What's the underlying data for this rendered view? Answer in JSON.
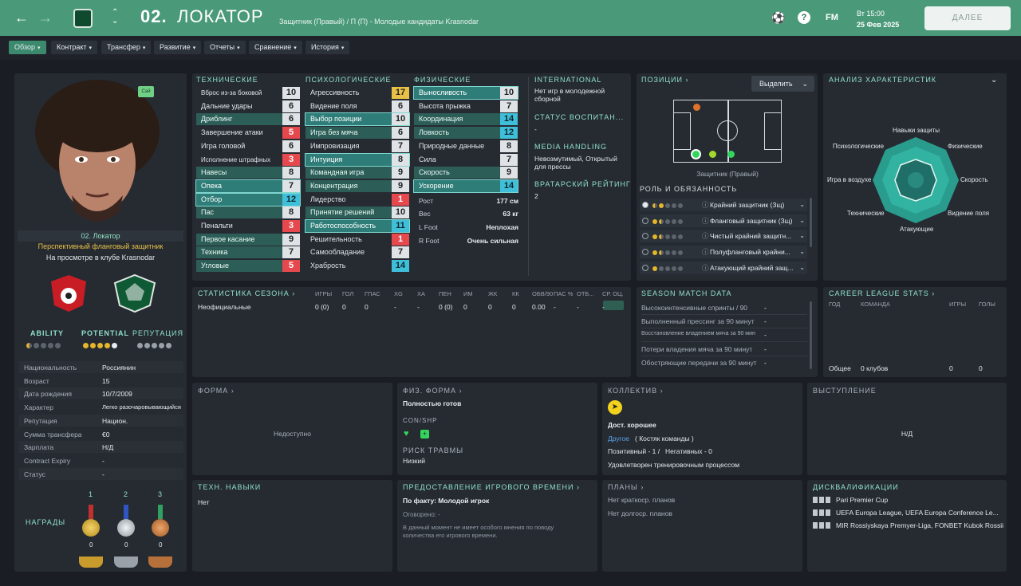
{
  "header": {
    "number": "02.",
    "name": "ЛОКАТОР",
    "subtitle": "Защитник (Правый) / П (П) - Молодые кандидаты Krasnodar",
    "time": "Вт 15:00",
    "date": "25 Фев 2025",
    "continue": "ДАЛЕЕ",
    "fm": "FM",
    "help": "?"
  },
  "tabs": [
    "Обзор",
    "Контракт",
    "Трансфер",
    "Развитие",
    "Отчеты",
    "Сравнение",
    "История"
  ],
  "profile": {
    "badge": "Сай",
    "name": "02. Локатор",
    "role": "Перспективный фланговый защитник",
    "status": "На просмотре в клубе Krasnodar",
    "ability": "ABILITY",
    "potential": "POTENTIAL",
    "reputation": "РЕПУТАЦИЯ"
  },
  "info": [
    [
      "Национальность",
      "Россиянин"
    ],
    [
      "Возраст",
      "15"
    ],
    [
      "Дата рождения",
      "10/7/2009"
    ],
    [
      "Характер",
      "Легко разочаровывающийся"
    ],
    [
      "Репутация",
      "Национ."
    ],
    [
      "Сумма трансфера",
      "€0"
    ],
    [
      "Зарплата",
      "Н/Д"
    ],
    [
      "Contract Expiry",
      "-"
    ],
    [
      "Статус",
      "-"
    ]
  ],
  "awards": {
    "title": "НАГРАДЫ",
    "places": [
      "1",
      "2",
      "3"
    ],
    "counts": [
      "0",
      "0",
      "0"
    ]
  },
  "attributes": {
    "tech_title": "ТЕХНИЧЕСКИЕ",
    "mental_title": "ПСИХОЛОГИЧЕСКИЕ",
    "phys_title": "ФИЗИЧЕСКИЕ",
    "technical": [
      [
        "Вброс из-за боковой",
        "10"
      ],
      [
        "Дальние удары",
        "6"
      ],
      [
        "Дриблинг",
        "6"
      ],
      [
        "Завершение атаки",
        "5"
      ],
      [
        "Игра головой",
        "6"
      ],
      [
        "Исполнение штрафных",
        "3"
      ],
      [
        "Навесы",
        "8"
      ],
      [
        "Опека",
        "7"
      ],
      [
        "Отбор",
        "12"
      ],
      [
        "Пас",
        "8"
      ],
      [
        "Пенальти",
        "3"
      ],
      [
        "Первое касание",
        "9"
      ],
      [
        "Техника",
        "7"
      ],
      [
        "Угловые",
        "5"
      ]
    ],
    "mental": [
      [
        "Агрессивность",
        "17"
      ],
      [
        "Видение поля",
        "6"
      ],
      [
        "Выбор позиции",
        "10"
      ],
      [
        "Игра без мяча",
        "6"
      ],
      [
        "Импровизация",
        "7"
      ],
      [
        "Интуиция",
        "8"
      ],
      [
        "Командная игра",
        "9"
      ],
      [
        "Концентрация",
        "9"
      ],
      [
        "Лидерство",
        "1"
      ],
      [
        "Принятие решений",
        "10"
      ],
      [
        "Работоспособность",
        "11"
      ],
      [
        "Решительность",
        "1"
      ],
      [
        "Самообладание",
        "7"
      ],
      [
        "Храбрость",
        "14"
      ]
    ],
    "physical": [
      [
        "Выносливость",
        "10"
      ],
      [
        "Высота прыжка",
        "7"
      ],
      [
        "Координация",
        "14"
      ],
      [
        "Ловкость",
        "12"
      ],
      [
        "Природные данные",
        "8"
      ],
      [
        "Сила",
        "7"
      ],
      [
        "Скорость",
        "9"
      ],
      [
        "Ускорение",
        "14"
      ]
    ],
    "extra": [
      [
        "Рост",
        "177 см"
      ],
      [
        "Вес",
        "63 кг"
      ],
      [
        "L Foot",
        "Неплохая"
      ],
      [
        "R Foot",
        "Очень сильная"
      ]
    ]
  },
  "side_info": {
    "international_title": "INTERNATIONAL",
    "international_text": "Нет игр в молодежной сборной",
    "homegrown_title": "СТАТУС ВОСПИТАН...",
    "homegrown_text": "-",
    "media_title": "MEDIA HANDLING",
    "media_text": "Невозмутимый, Открытый для прессы",
    "gk_title": "ВРАТАРСКИЙ РЕЙТИНГ",
    "gk_text": "2"
  },
  "positions": {
    "title": "ПОЗИЦИИ",
    "select": "Выделить",
    "caption": "Защитник (Правый)",
    "roles_title": "РОЛЬ И ОБЯЗАННОСТЬ",
    "roles": [
      "Крайний защитник (Зщ)",
      "Фланговый защитник (Зщ)",
      "Чистый крайний защитн...",
      "Полуфланговый крайни...",
      "Атакующий крайний защ..."
    ]
  },
  "analysis": {
    "title": "АНАЛИЗ ХАРАКТЕРИСТИК",
    "labels": [
      "Навыки защиты",
      "Физические",
      "Скорость",
      "Видение поля",
      "Атакующие",
      "Технические",
      "Игра в воздухе",
      "Психологические"
    ]
  },
  "season_stats": {
    "title": "СТАТИСТИКА СЕЗОНА",
    "headers": [
      "ИГРЫ",
      "ГОЛ",
      "ГПАС",
      "XG",
      "XA",
      "ПЕН",
      "ИМ",
      "ЖК",
      "КК",
      "ОБВ/90",
      "ПАС %",
      "ОТБ...",
      "СР. ОЦ."
    ],
    "row_label": "Неофициальные",
    "row": [
      "0 (0)",
      "0",
      "0",
      "-",
      "-",
      "0 (0)",
      "0",
      "0",
      "0",
      "0.00",
      "-",
      "-",
      "-"
    ]
  },
  "match_data": {
    "title": "SEASON MATCH DATA",
    "rows": [
      [
        "Высокоинтенсивные спринты / 90",
        "-"
      ],
      [
        "Выполненный прессинг за 90 минут",
        "-"
      ],
      [
        "Восстановление владением мяча за 90 мин",
        "-"
      ],
      [
        "Потери владения мяча за 90 минут",
        "-"
      ],
      [
        "Обостряющие передачи за 90 минут",
        "-"
      ]
    ]
  },
  "career": {
    "title": "CAREER LEAGUE STATS",
    "h_year": "ГОД",
    "h_team": "КОМАНДА",
    "h_games": "ИГРЫ",
    "h_goals": "ГОЛЫ",
    "total": "Общее",
    "clubs": "0 клубов",
    "games": "0",
    "goals": "0"
  },
  "form": {
    "title": "ФОРМА",
    "text": "Недоступно"
  },
  "fitness": {
    "title": "ФИЗ. ФОРМА",
    "status": "Полностью готов",
    "con_shp": "CON/SHP",
    "injury_title": "РИСК ТРАВМЫ",
    "injury": "Низкий"
  },
  "squad": {
    "title": "КОЛЛЕКТИВ",
    "level": "Дост. хорошее",
    "link": "Другое",
    "link_rest": "( Костяк команды )",
    "positive": "Позитивный - 1 /",
    "negative": "Негативных - 0",
    "training": "Удовлетворен тренировочным процессом"
  },
  "performance": {
    "title": "ВЫСТУПЛЕНИЕ",
    "text": "Н/Д"
  },
  "tech_skills": {
    "title": "ТЕХН. НАВЫКИ",
    "text": "Нет"
  },
  "playtime": {
    "title": "ПРЕДОСТАВЛЕНИЕ ИГРОВОГО ВРЕМЕНИ",
    "fact": "По факту: Молодой игрок",
    "agreed": "Оговорено: -",
    "note": "В данный момент не имеет особого мнения по поводу количества его игрового времени."
  },
  "plans": {
    "title": "ПЛАНЫ",
    "short": "Нет краткоср. планов",
    "long": "Нет долгоср. планов"
  },
  "bans": {
    "title": "ДИСКВАЛИФИКАЦИИ",
    "items": [
      "Pari Premier Cup",
      "UEFA Europa League, UEFA Europa Conference Le...",
      "MIR Rossiyskaya Premyer-Liga, FONBET Kubok Rossii"
    ]
  },
  "colors": {
    "accent": "#4a9a7a",
    "teal": "#8fe0c8",
    "red": "#e5494e",
    "cyan": "#3fbfd9",
    "yellow": "#e8c048"
  }
}
